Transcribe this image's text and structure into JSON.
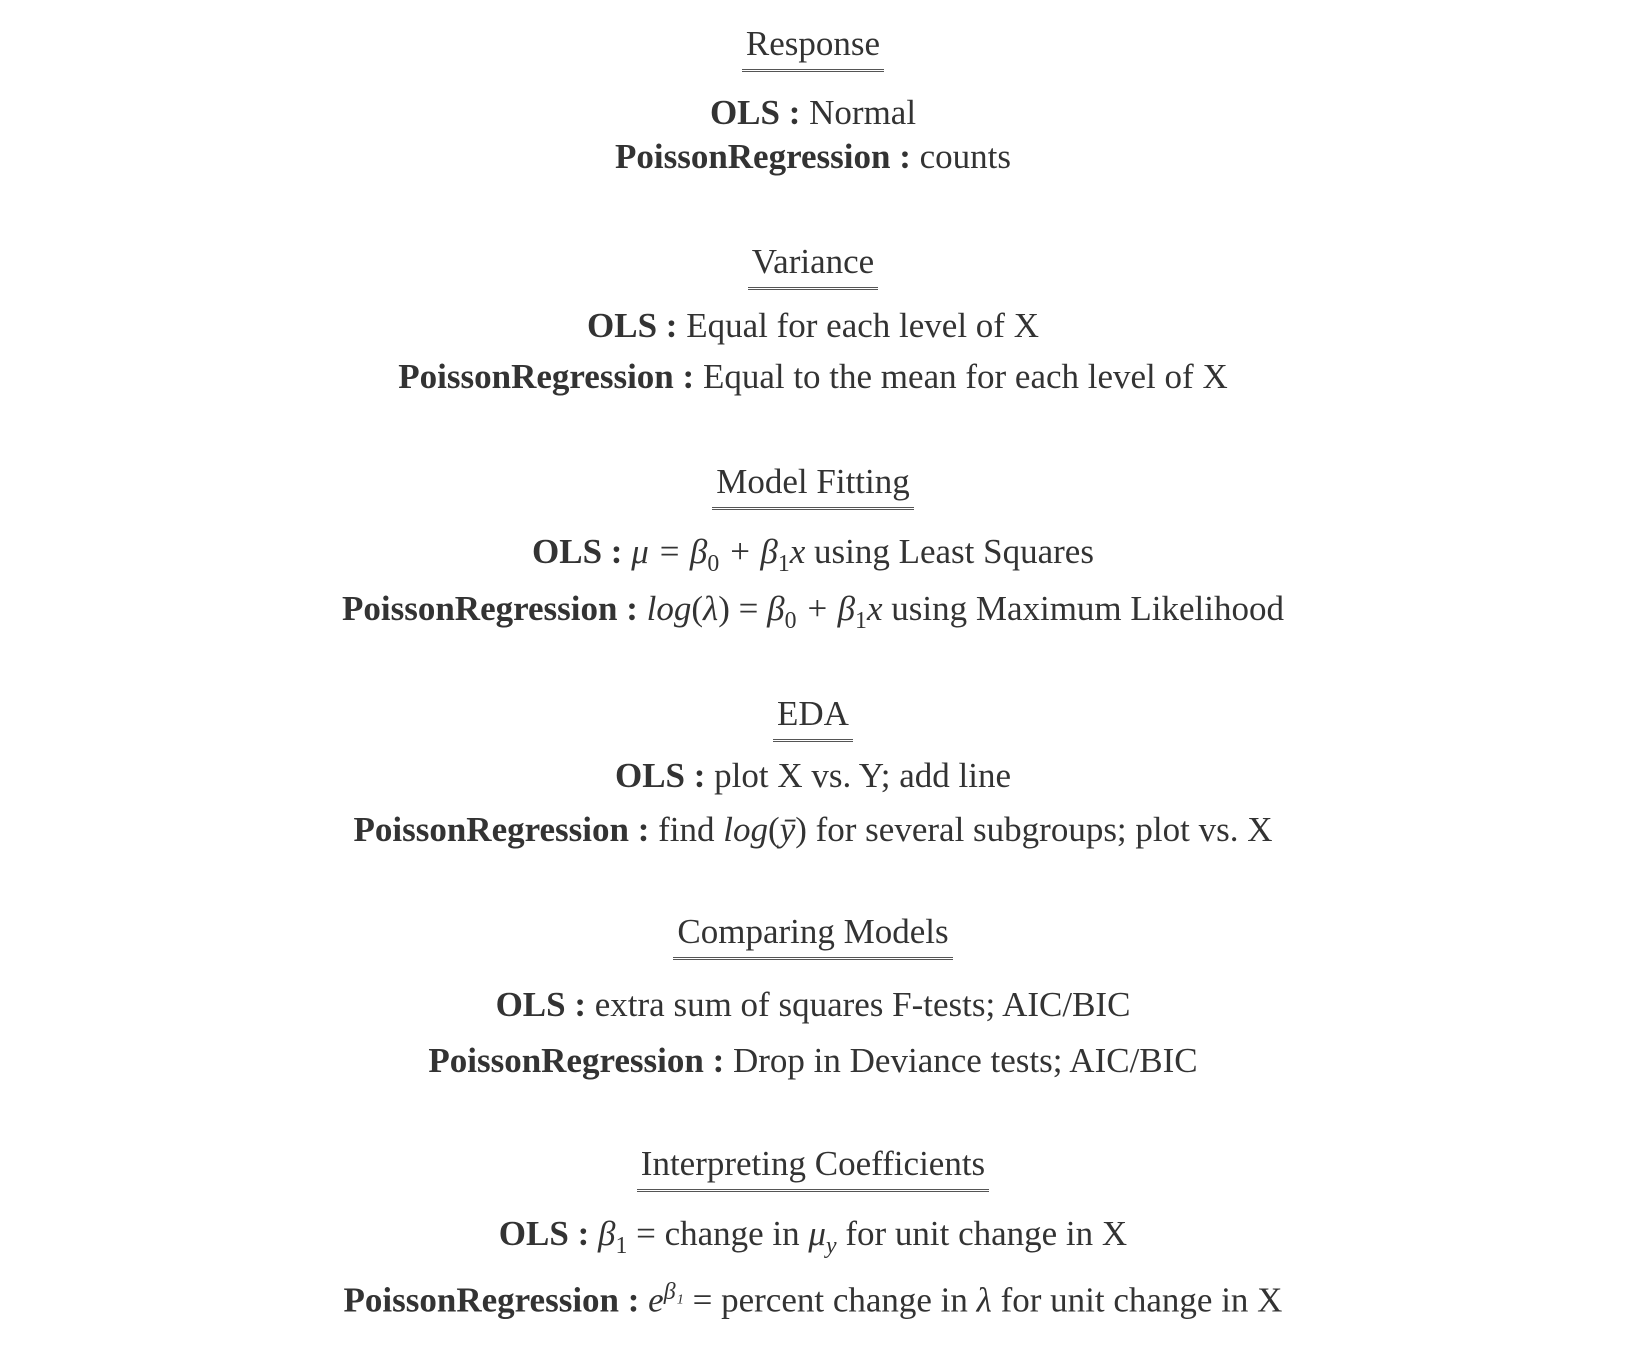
{
  "sections": [
    {
      "heading": "Response",
      "ols": [
        {
          "t": "OLS : ",
          "s": "b"
        },
        {
          "t": "Normal",
          "s": ""
        }
      ],
      "poisson": [
        {
          "t": "PoissonRegression : ",
          "s": "b"
        },
        {
          "t": "counts",
          "s": ""
        }
      ]
    },
    {
      "heading": "Variance",
      "ols": [
        {
          "t": "OLS : ",
          "s": "b"
        },
        {
          "t": "Equal for each level of X",
          "s": ""
        }
      ],
      "poisson": [
        {
          "t": "PoissonRegression : ",
          "s": "b"
        },
        {
          "t": "Equal to the mean for each level of X",
          "s": ""
        }
      ]
    },
    {
      "heading": "Model Fitting",
      "ols": [
        {
          "t": "OLS : ",
          "s": "b"
        },
        {
          "t": "μ = β",
          "s": "m"
        },
        {
          "t": "0",
          "s": "sub"
        },
        {
          "t": " + β",
          "s": "m"
        },
        {
          "t": "1",
          "s": "sub"
        },
        {
          "t": "x",
          "s": "m"
        },
        {
          "t": " using Least Squares",
          "s": ""
        }
      ],
      "poisson": [
        {
          "t": "PoissonRegression : ",
          "s": "b"
        },
        {
          "t": "log",
          "s": "m"
        },
        {
          "t": "(",
          "s": ""
        },
        {
          "t": "λ",
          "s": "m"
        },
        {
          "t": ") = ",
          "s": ""
        },
        {
          "t": "β",
          "s": "m"
        },
        {
          "t": "0",
          "s": "sub"
        },
        {
          "t": " + β",
          "s": "m"
        },
        {
          "t": "1",
          "s": "sub"
        },
        {
          "t": "x",
          "s": "m"
        },
        {
          "t": " using Maximum Likelihood",
          "s": ""
        }
      ]
    },
    {
      "heading": "EDA",
      "ols": [
        {
          "t": "OLS : ",
          "s": "b"
        },
        {
          "t": "plot X vs. Y; add line",
          "s": ""
        }
      ],
      "poisson": [
        {
          "t": "PoissonRegression : ",
          "s": "b"
        },
        {
          "t": "find ",
          "s": ""
        },
        {
          "t": "log",
          "s": "m"
        },
        {
          "t": "(",
          "s": ""
        },
        {
          "t": "ȳ",
          "s": "m"
        },
        {
          "t": ")",
          "s": ""
        },
        {
          "t": " for several subgroups; plot vs. X",
          "s": ""
        }
      ]
    },
    {
      "heading": "Comparing Models",
      "ols": [
        {
          "t": "OLS : ",
          "s": "b"
        },
        {
          "t": "extra sum of squares F-tests; AIC/BIC",
          "s": ""
        }
      ],
      "poisson": [
        {
          "t": "PoissonRegression : ",
          "s": "b"
        },
        {
          "t": "Drop in Deviance tests; AIC/BIC",
          "s": ""
        }
      ]
    },
    {
      "heading": "Interpreting Coefficients",
      "ols": [
        {
          "t": "OLS : ",
          "s": "b"
        },
        {
          "t": "β",
          "s": "m"
        },
        {
          "t": "1",
          "s": "sub"
        },
        {
          "t": " =  change in ",
          "s": ""
        },
        {
          "t": "μ",
          "s": "m"
        },
        {
          "t": "y",
          "s": "subi"
        },
        {
          "t": " for unit change in X",
          "s": ""
        }
      ],
      "poisson": [
        {
          "t": "PoissonRegression : ",
          "s": "b"
        },
        {
          "t": "e",
          "s": "m"
        },
        {
          "t": "β₁",
          "s": "supi"
        },
        {
          "t": " =  percent change in ",
          "s": ""
        },
        {
          "t": "λ",
          "s": "m"
        },
        {
          "t": " for unit change in X",
          "s": ""
        }
      ]
    }
  ]
}
